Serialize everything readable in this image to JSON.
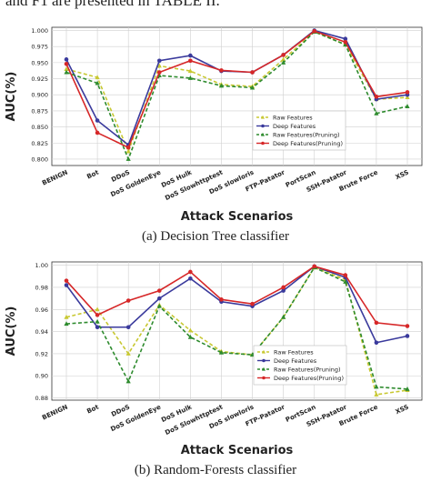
{
  "header_text": "and F1 are presented in TABLE II.",
  "chart_data": [
    {
      "type": "line",
      "caption": "(a) Decision Tree classifier",
      "xlabel": "Attack Scenarios",
      "ylabel": "AUC(%)",
      "ylim": [
        0.79,
        1.005
      ],
      "yticks": [
        "0.800",
        "0.825",
        "0.850",
        "0.875",
        "0.900",
        "0.925",
        "0.950",
        "0.975",
        "1.000"
      ],
      "grid": true,
      "legend_position": "lower-right",
      "categories": [
        "BENIGN",
        "Bot",
        "DDoS",
        "DoS GoldenEye",
        "DoS Hulk",
        "DoS Slowhttptest",
        "DoS slowloris",
        "FTP-Patator",
        "PortScan",
        "SSH-Patator",
        "Brute Force",
        "XSS"
      ],
      "series": [
        {
          "name": "Raw Features",
          "color": "#c8c832",
          "dash": true,
          "marker": "triangle",
          "values": [
            0.94,
            0.927,
            0.812,
            0.945,
            0.937,
            0.916,
            0.913,
            0.955,
            0.998,
            0.978,
            0.893,
            0.896
          ]
        },
        {
          "name": "Deep Features",
          "color": "#3a3a9c",
          "dash": false,
          "marker": "circle",
          "values": [
            0.955,
            0.86,
            0.822,
            0.953,
            0.961,
            0.937,
            0.935,
            0.962,
            1.0,
            0.987,
            0.893,
            0.9
          ]
        },
        {
          "name": "Raw Features(Pruning)",
          "color": "#2e8b2e",
          "dash": true,
          "marker": "triangle",
          "values": [
            0.935,
            0.918,
            0.8,
            0.93,
            0.926,
            0.914,
            0.911,
            0.95,
            0.998,
            0.978,
            0.871,
            0.882
          ]
        },
        {
          "name": "Deep Features(Pruning)",
          "color": "#d62728",
          "dash": false,
          "marker": "circle",
          "values": [
            0.948,
            0.841,
            0.818,
            0.935,
            0.953,
            0.938,
            0.935,
            0.962,
            0.999,
            0.982,
            0.897,
            0.904
          ]
        }
      ]
    },
    {
      "type": "line",
      "caption": "(b) Random-Forests classifier",
      "xlabel": "Attack Scenarios",
      "ylabel": "AUC(%)",
      "ylim": [
        0.878,
        1.003
      ],
      "yticks": [
        "0.88",
        "0.90",
        "0.92",
        "0.94",
        "0.96",
        "0.98",
        "1.00"
      ],
      "grid": true,
      "legend_position": "lower-right",
      "categories": [
        "BENIGN",
        "Bot",
        "DDoS",
        "DoS GoldenEye",
        "DoS Hulk",
        "DoS Slowhttptest",
        "DoS slowloris",
        "FTP-Patator",
        "PortScan",
        "SSH-Patator",
        "Brute Force",
        "XSS"
      ],
      "series": [
        {
          "name": "Raw Features",
          "color": "#c8c832",
          "dash": true,
          "marker": "triangle",
          "values": [
            0.953,
            0.96,
            0.92,
            0.964,
            0.941,
            0.922,
            0.919,
            0.953,
            0.998,
            0.987,
            0.883,
            0.887
          ]
        },
        {
          "name": "Deep Features",
          "color": "#3a3a9c",
          "dash": false,
          "marker": "circle",
          "values": [
            0.982,
            0.944,
            0.944,
            0.97,
            0.988,
            0.967,
            0.963,
            0.977,
            0.999,
            0.989,
            0.93,
            0.936
          ]
        },
        {
          "name": "Raw Features(Pruning)",
          "color": "#2e8b2e",
          "dash": true,
          "marker": "triangle",
          "values": [
            0.947,
            0.949,
            0.895,
            0.963,
            0.935,
            0.921,
            0.919,
            0.953,
            0.998,
            0.985,
            0.89,
            0.888
          ]
        },
        {
          "name": "Deep Features(Pruning)",
          "color": "#d62728",
          "dash": false,
          "marker": "circle",
          "values": [
            0.986,
            0.955,
            0.968,
            0.977,
            0.994,
            0.969,
            0.965,
            0.98,
            0.999,
            0.991,
            0.948,
            0.945
          ]
        }
      ]
    }
  ]
}
